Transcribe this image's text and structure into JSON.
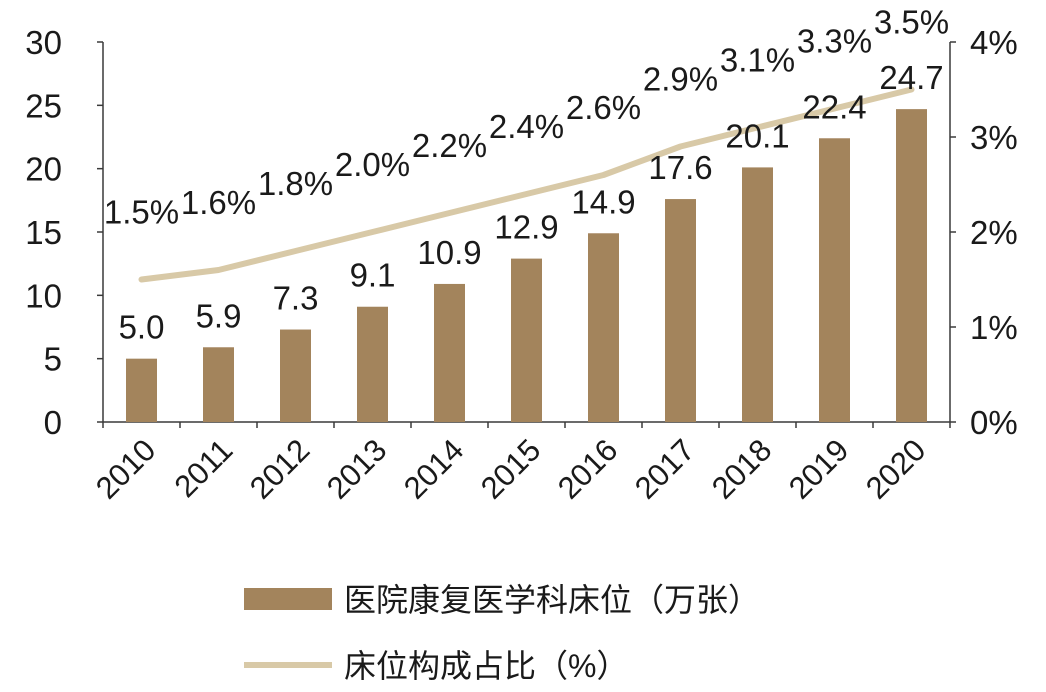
{
  "chart_data": {
    "type": "bar",
    "categories": [
      "2010",
      "2011",
      "2012",
      "2013",
      "2014",
      "2015",
      "2016",
      "2017",
      "2018",
      "2019",
      "2020"
    ],
    "series": [
      {
        "name": "医院康复医学科床位（万张）",
        "kind": "bar",
        "axis": "left",
        "color": "#a3845c",
        "values": [
          5.0,
          5.9,
          7.3,
          9.1,
          10.9,
          12.9,
          14.9,
          17.6,
          20.1,
          22.4,
          24.7
        ],
        "labels": [
          "5.0",
          "5.9",
          "7.3",
          "9.1",
          "10.9",
          "12.9",
          "14.9",
          "17.6",
          "20.1",
          "22.4",
          "24.7"
        ]
      },
      {
        "name": "床位构成占比（%）",
        "kind": "line",
        "axis": "right",
        "color": "#d8c9a7",
        "values": [
          1.5,
          1.6,
          1.8,
          2.0,
          2.2,
          2.4,
          2.6,
          2.9,
          3.1,
          3.3,
          3.5
        ],
        "labels": [
          "1.5%",
          "1.6%",
          "1.8%",
          "2.0%",
          "2.2%",
          "2.4%",
          "2.6%",
          "2.9%",
          "3.1%",
          "3.3%",
          "3.5%"
        ]
      }
    ],
    "y_left": {
      "ylim": [
        0,
        30
      ],
      "ticks": [
        "0",
        "5",
        "10",
        "15",
        "20",
        "25",
        "30"
      ]
    },
    "y_right": {
      "ylim": [
        0,
        4
      ],
      "ticks": [
        "0%",
        "1%",
        "2%",
        "3%",
        "4%"
      ]
    },
    "grid": false,
    "legend_position": "bottom"
  }
}
